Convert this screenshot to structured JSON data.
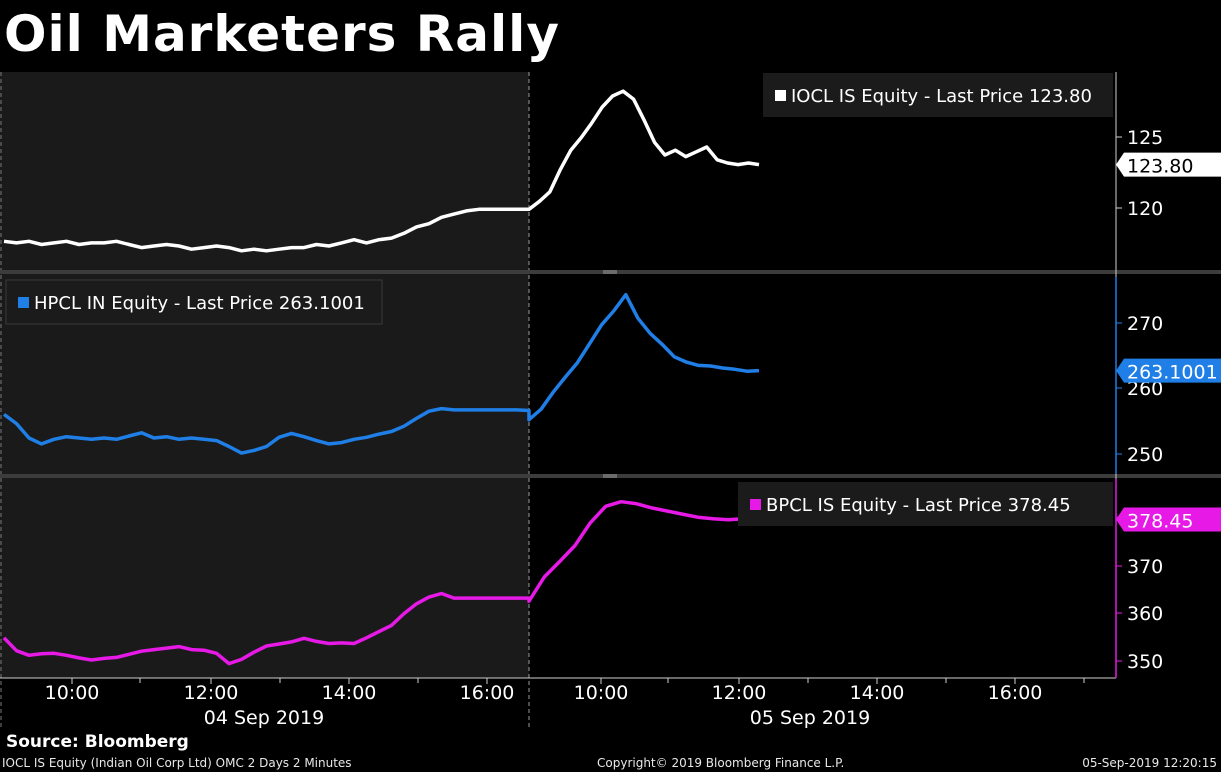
{
  "title": "Oil Marketers Rally",
  "source": "Source: Bloomberg",
  "footer": {
    "left": "IOCL IS Equity (Indian Oil Corp Ltd) OMC 2 Days 2 Minutes",
    "center": "Copyright© 2019 Bloomberg Finance L.P.",
    "right": "05-Sep-2019 12:20:15"
  },
  "colors": {
    "background": "#000000",
    "prior_day_shading": "#1a1a1a",
    "iocl": "#ffffff",
    "hpcl": "#1f7fe6",
    "bpcl": "#e619e6"
  },
  "chart_data": {
    "type": "line",
    "x_axis": {
      "tick_labels": [
        "10:00",
        "12:00",
        "14:00",
        "16:00",
        "10:00",
        "12:00",
        "14:00",
        "16:00"
      ],
      "date_labels": [
        "04 Sep 2019",
        "05 Sep 2019"
      ]
    },
    "panels": [
      {
        "name": "IOCL IS Equity",
        "legend": "IOCL IS Equity - Last Price 123.80",
        "last_price": "123.80",
        "color": "#ffffff",
        "ylim": [
          117.2,
          129.6
        ],
        "yticks": [
          "125",
          "120"
        ],
        "day1": [
          119.0,
          118.9,
          119.0,
          118.8,
          118.9,
          119.0,
          118.8,
          118.9,
          118.9,
          119.0,
          118.8,
          118.6,
          118.7,
          118.8,
          118.7,
          118.5,
          118.6,
          118.7,
          118.6,
          118.4,
          118.5,
          118.4,
          118.5,
          118.6,
          118.6,
          118.8,
          118.7,
          118.9,
          119.1,
          118.9,
          119.1,
          119.2,
          119.5,
          119.9,
          120.1,
          120.5,
          120.7,
          120.9,
          121.0,
          121.0,
          121.0,
          121.0,
          121.0
        ],
        "day2": [
          121.0,
          121.5,
          122.1,
          123.5,
          124.7,
          125.5,
          126.4,
          127.4,
          128.1,
          128.4,
          127.9,
          126.6,
          125.2,
          124.4,
          124.7,
          124.3,
          124.6,
          124.9,
          124.1,
          123.9,
          123.8,
          123.9,
          123.8
        ]
      },
      {
        "name": "HPCL IN Equity",
        "legend": "HPCL IN Equity - Last Price 263.1001",
        "last_price": "263.1001",
        "color": "#1f7fe6",
        "ylim": [
          247.3,
          277.4
        ],
        "yticks": [
          "270",
          "260",
          "250"
        ],
        "day1": [
          256.4,
          255.0,
          252.8,
          251.9,
          252.6,
          253.0,
          252.8,
          252.6,
          252.8,
          252.6,
          253.1,
          253.6,
          252.8,
          253.0,
          252.6,
          252.8,
          252.6,
          252.4,
          251.5,
          250.5,
          250.9,
          251.5,
          252.9,
          253.5,
          253.0,
          252.4,
          251.9,
          252.1,
          252.6,
          252.9,
          253.4,
          253.8,
          254.6,
          255.8,
          256.9,
          257.3,
          257.1,
          257.1,
          257.1,
          257.1,
          257.1,
          257.1,
          257.0
        ],
        "day2": [
          255.6,
          257.2,
          259.8,
          262.1,
          264.3,
          267.2,
          270.1,
          272.2,
          274.7,
          271.1,
          268.8,
          267.1,
          265.2,
          264.4,
          263.9,
          263.8,
          263.5,
          263.3,
          263.0,
          263.1
        ]
      },
      {
        "name": "BPCL IS Equity",
        "legend": "BPCL IS Equity - Last Price 378.45",
        "last_price": "378.45",
        "color": "#e619e6",
        "ylim": [
          347.7,
          386.3
        ],
        "yticks": [
          "380",
          "370",
          "360",
          "350"
        ],
        "day1": [
          355.5,
          353.0,
          352.1,
          352.4,
          352.5,
          352.1,
          351.6,
          351.2,
          351.5,
          351.7,
          352.3,
          352.9,
          353.2,
          353.5,
          353.8,
          353.2,
          353.1,
          352.5,
          350.5,
          351.3,
          352.7,
          353.9,
          354.3,
          354.7,
          355.4,
          354.8,
          354.4,
          354.5,
          354.4,
          355.5,
          356.7,
          357.9,
          360.2,
          362.1,
          363.4,
          364.1,
          363.2,
          363.2,
          363.2,
          363.2,
          363.2,
          363.2,
          363.2
        ],
        "day2": [
          362.6,
          367.3,
          370.3,
          373.4,
          377.8,
          381.0,
          381.9,
          381.5,
          380.7,
          380.1,
          379.5,
          378.9,
          378.6,
          378.4,
          378.6,
          378.45
        ]
      }
    ]
  }
}
